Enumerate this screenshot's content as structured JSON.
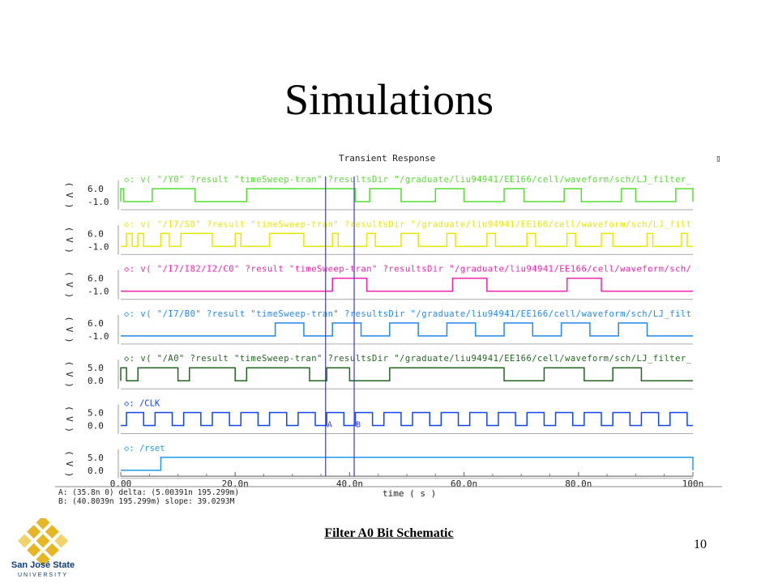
{
  "slide": {
    "title": "Simulations",
    "caption": "Filter A0 Bit Schematic",
    "page_number": "10"
  },
  "logo": {
    "name": "San José State",
    "university": "UNIVERSITY",
    "colors": {
      "gold": "#e7b625",
      "blue": "#0b3b7a"
    }
  },
  "chart_data": {
    "type": "line",
    "title": "Transient Response",
    "xlabel": "time ( s )",
    "x_tick_labels": [
      "0.00",
      "20.0n",
      "40.0n",
      "60.0n",
      "80.0n",
      "100n"
    ],
    "x_ticks_ns": [
      0,
      20,
      40,
      60,
      80,
      100
    ],
    "xlim_ns": [
      0,
      100
    ],
    "cursors": [
      {
        "label": "A",
        "x_ns": 35.8,
        "color": "#3333ff"
      },
      {
        "label": "B",
        "x_ns": 40.8,
        "color": "#3333ff"
      }
    ],
    "readout": {
      "line1": "A: (35.8n 0)          delta: (5.00391n 195.299m)",
      "line2": "B: (40.8039n 195.299m)       slope: 39.0293M"
    },
    "corner_glyph": "▯",
    "series": [
      {
        "name": "\"/Y0\"",
        "legend": "◇: v( \"/Y0\" ?result \"timeSweep-tran\" ?resultsDir \"/graduate/liu94941/EE166/cell/waveform/sch/LJ_filter_",
        "color": "#55dd33",
        "ylabel": "( V )",
        "ytick_hi": "6.0",
        "ytick_lo": "-1.0",
        "lo": 0,
        "hi": 1,
        "transitions_ns": [
          0,
          0.5,
          5.5,
          13,
          22,
          41,
          43.5,
          49,
          55,
          60,
          67,
          70.5,
          77.5,
          80.5,
          87.5,
          90,
          97,
          100.1
        ]
      },
      {
        "name": "\"/I7/S0\"",
        "legend": "◇: v( \"/I7/S0\" ?result \"timeSweep-tran\" ?resultsDir \"/graduate/liu94941/EE166/cell/waveform/sch/LJ_filt",
        "color": "#e8e800",
        "ylabel": "( V )",
        "ytick_hi": "6.0",
        "ytick_lo": "-1.0",
        "lo": 0,
        "hi": 1,
        "transitions_ns": [
          1,
          2,
          3,
          4,
          7,
          8.5,
          10.5,
          16,
          20,
          21,
          26,
          32,
          37,
          38,
          43,
          44.5,
          49,
          52,
          57,
          58.5,
          64,
          65.5,
          71,
          72.5,
          78,
          79.5,
          84,
          86,
          92,
          93,
          98,
          99
        ]
      },
      {
        "name": "\"/I7/I82/I2/C0\"",
        "legend": "◇: v( \"/I7/I82/I2/C0\" ?result \"timeSweep-tran\" ?resultsDir \"/graduate/liu94941/EE166/cell/waveform/sch/",
        "color": "#ee22aa",
        "ylabel": "( V )",
        "ytick_hi": "6.0",
        "ytick_lo": "-1.0",
        "lo": 0,
        "hi": 1,
        "transitions_ns": [
          37,
          43,
          58,
          64,
          78,
          84
        ]
      },
      {
        "name": "\"/I7/B0\"",
        "legend": "◇: v( \"/I7/B0\" ?result \"timeSweep-tran\" ?resultsDir \"/graduate/liu94941/EE166/cell/waveform/sch/LJ_filt",
        "color": "#2288ee",
        "ylabel": "( V )",
        "ytick_hi": "6.0",
        "ytick_lo": "-1.0",
        "lo": 0,
        "hi": 1,
        "transitions_ns": [
          27,
          32,
          37,
          42,
          47,
          52,
          57,
          62,
          67,
          72,
          77,
          82,
          87,
          92
        ]
      },
      {
        "name": "\"/A0\"",
        "legend": "◇: v( \"/A0\" ?result \"timeSweep-tran\" ?resultsDir \"/graduate/liu94941/EE166/cell/waveform/sch/LJ_filter_",
        "color": "#226622",
        "ylabel": "( V )",
        "ytick_hi": "5.0",
        "ytick_lo": "0.0",
        "lo": 0,
        "hi": 1,
        "transitions_ns": [
          0,
          1,
          3,
          10,
          12,
          20,
          22,
          33,
          36,
          40,
          47,
          67,
          74,
          81,
          86,
          91
        ]
      },
      {
        "name": "/CLK",
        "legend": "◇: /CLK",
        "color": "#1144ee",
        "ylabel": "( V )",
        "ytick_hi": "5.0",
        "ytick_lo": "0.0",
        "lo": 0,
        "hi": 1,
        "transitions_ns": [
          1,
          4,
          6,
          9,
          11,
          14,
          16,
          19,
          21,
          24,
          26,
          29,
          31,
          34,
          36,
          39,
          41,
          44,
          46,
          49,
          51,
          54,
          56,
          59,
          61,
          64,
          66,
          69,
          71,
          74,
          76,
          79,
          81,
          84,
          86,
          89,
          91,
          94,
          96,
          99
        ]
      },
      {
        "name": "/rset",
        "legend": "◇: /rset",
        "color": "#2299ee",
        "ylabel": "( V )",
        "ytick_hi": "5.0",
        "ytick_lo": "0.0",
        "lo": 0,
        "hi": 1,
        "transitions_ns": [
          7,
          100.1
        ]
      }
    ]
  }
}
